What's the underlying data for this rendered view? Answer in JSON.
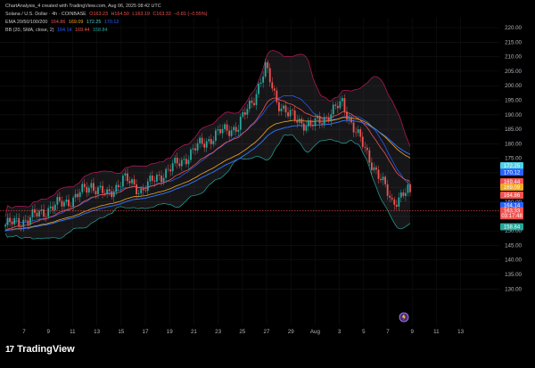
{
  "header": {
    "title_line": "ChartAnalysis_4 created with TradingView.com, Aug 06, 2025 08:42 UTC",
    "symbol": "Solana / U.S. Dollar · 4h · COINBASE",
    "ohlc": {
      "o": "O163.23",
      "h": "H164.50",
      "l": "L163.19",
      "c": "C163.33",
      "chg": "−0.81 (−0.55%)"
    },
    "ema_label": "EMA 20/50/100/200",
    "ema_values": [
      "164.86",
      "169.09",
      "172.25",
      "170.12"
    ],
    "bb_label": "BB (20, SMA, close, 2)",
    "bb_values": [
      "164.14",
      "169.44",
      "158.84"
    ]
  },
  "colors": {
    "up": "#26a69a",
    "down": "#ef5350",
    "ema20": "#ef5350",
    "ema50": "#f5a623",
    "ema100": "#4dd0c8",
    "ema200": "#2962ff",
    "bb_mid": "#2962ff",
    "bb_band": "#c2185b"
  },
  "y_axis": {
    "ticks": [
      "220.00",
      "215.00",
      "210.00",
      "205.00",
      "200.00",
      "195.00",
      "190.00",
      "185.00",
      "180.00",
      "175.00",
      "170.00",
      "165.00",
      "160.00",
      "155.00",
      "150.00",
      "145.00",
      "140.00",
      "135.00",
      "130.00"
    ]
  },
  "x_axis": {
    "ticks": [
      "7",
      "9",
      "11",
      "13",
      "15",
      "17",
      "19",
      "21",
      "23",
      "25",
      "27",
      "29",
      "Aug",
      "3",
      "5",
      "7",
      "9",
      "11",
      "13"
    ]
  },
  "price_labels": [
    {
      "text": "172.25",
      "color": "#4dd0e1",
      "value": 172.25
    },
    {
      "text": "170.12",
      "color": "#2962ff",
      "value": 170.12
    },
    {
      "text": "169.44",
      "color": "#ef5350",
      "value": 169.44
    },
    {
      "text": "164.86",
      "color": "#ef5350",
      "value": 164.86
    },
    {
      "text": "169.09",
      "color": "#f5a623",
      "value": 169.09
    },
    {
      "text": "164.14",
      "color": "#2962ff",
      "value": 164.14
    },
    {
      "text": "163.33",
      "color": "#ef5350",
      "value": 163.33
    },
    {
      "text": "03:17:48",
      "color": "#ef5350",
      "value": 163.33
    },
    {
      "text": "158.84",
      "color": "#26a69a",
      "value": 158.84
    }
  ],
  "brand": "TradingView"
}
